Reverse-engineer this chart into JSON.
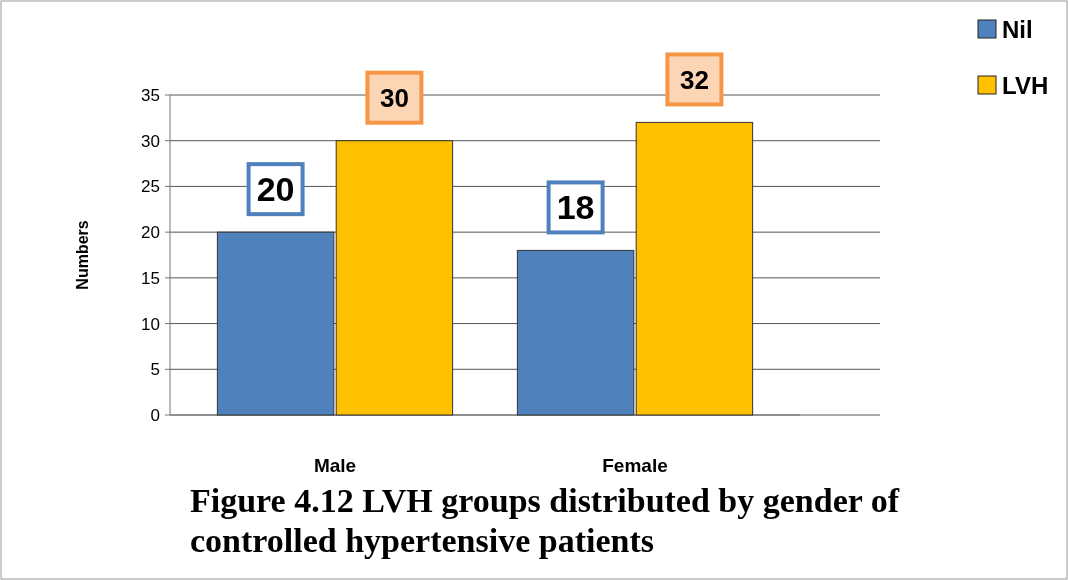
{
  "chart_data": {
    "type": "bar",
    "title": "Figure 4.12 LVH groups distributed by gender of controlled hypertensive patients",
    "ylabel": "Numbers",
    "categories": [
      "Male",
      "Female"
    ],
    "series": [
      {
        "name": "Nil",
        "color": "#4f81bd",
        "values": [
          20,
          18
        ]
      },
      {
        "name": "LVH",
        "color": "#ffc000",
        "values": [
          30,
          32
        ]
      }
    ],
    "ylim": [
      0,
      35
    ],
    "yticks": [
      0,
      5,
      10,
      15,
      20,
      25,
      30,
      35
    ],
    "grid": "y",
    "legend": "top right",
    "data_labels": true
  }
}
